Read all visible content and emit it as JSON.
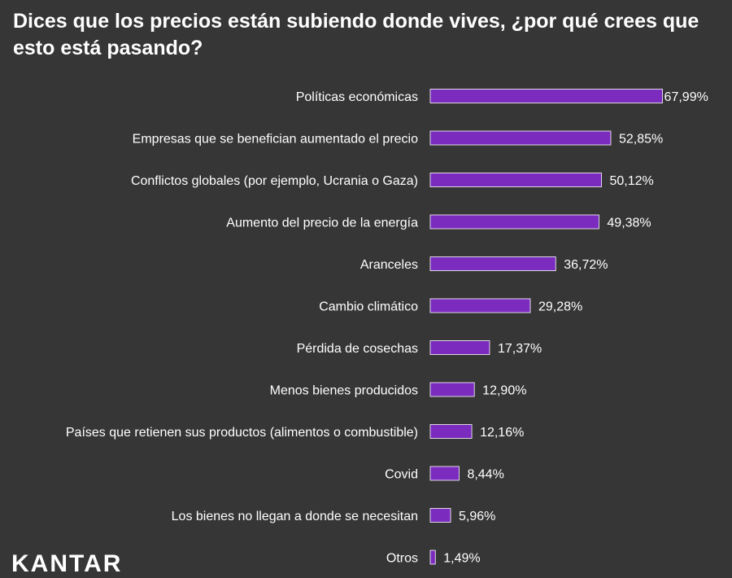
{
  "chart_data": {
    "type": "bar",
    "orientation": "horizontal",
    "title": "Dices que los precios están subiendo donde vives, ¿por qué crees que esto está pasando?",
    "categories": [
      "Políticas económicas",
      "Empresas que se benefician aumentado el precio",
      "Conflictos globales (por ejemplo, Ucrania o Gaza)",
      "Aumento del precio de la energía",
      "Aranceles",
      "Cambio climático",
      "Pérdida de cosechas",
      "Menos bienes producidos",
      "Países que retienen sus productos (alimentos o combustible)",
      "Covid",
      "Los bienes no llegan a donde se necesitan",
      "Otros"
    ],
    "values": [
      67.99,
      52.85,
      50.12,
      49.38,
      36.72,
      29.28,
      17.37,
      12.9,
      12.16,
      8.44,
      5.96,
      1.49
    ],
    "value_labels": [
      "67,99%",
      "52,85%",
      "50,12%",
      "49,38%",
      "36,72%",
      "29,28%",
      "17,37%",
      "12,90%",
      "12,16%",
      "8,44%",
      "5,96%",
      "1,49%"
    ],
    "xlim": [
      0,
      100
    ],
    "xlabel": "",
    "ylabel": "",
    "bar_color": "#7B2CBF",
    "bar_border_color": "#ffffff",
    "background_color": "#363636"
  },
  "brand": {
    "logo_text": "KANTAR"
  }
}
